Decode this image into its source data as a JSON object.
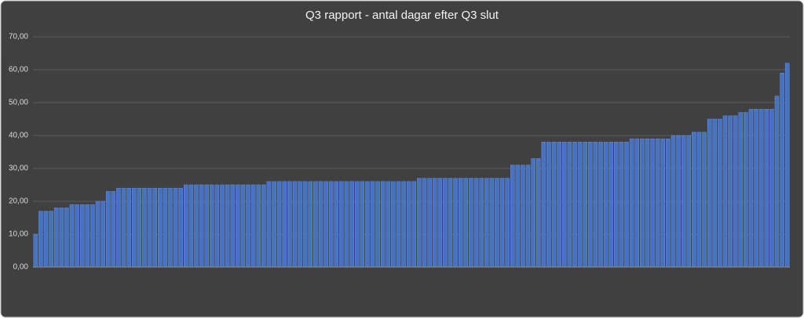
{
  "chart_data": {
    "type": "bar",
    "title": "Q3 rapport - antal dagar efter Q3 slut",
    "categories": [
      null,
      null,
      null,
      null,
      null,
      null,
      null,
      null,
      null,
      null,
      null,
      null,
      null,
      null,
      null,
      null,
      null,
      null,
      null,
      null,
      null,
      null,
      null,
      null,
      null,
      null,
      null,
      null,
      null,
      null,
      null,
      null,
      null,
      null,
      null,
      null,
      null,
      null,
      null,
      null,
      null,
      null,
      null,
      null,
      null,
      null,
      null,
      null,
      null,
      null,
      null,
      null,
      null,
      null,
      null,
      null,
      null,
      null,
      null,
      null,
      null,
      null,
      null,
      null,
      null,
      null,
      null,
      null,
      null,
      null,
      null,
      null,
      null,
      null,
      null,
      null,
      null,
      null,
      null,
      null,
      null,
      null,
      null,
      null,
      null,
      null,
      null,
      null,
      null,
      null,
      null,
      null,
      null,
      null,
      null,
      null,
      null,
      null,
      null,
      null,
      null,
      null,
      null,
      null,
      null,
      null,
      null,
      null,
      null,
      null,
      null,
      null,
      null,
      null,
      null,
      null,
      null,
      null,
      null,
      null,
      null,
      null,
      null,
      null,
      null,
      null,
      null,
      null,
      null,
      null,
      null,
      null,
      null,
      null,
      null,
      null,
      null,
      null,
      null,
      null,
      null,
      null,
      null,
      null,
      null,
      null
    ],
    "values": [
      10,
      17,
      17,
      17,
      18,
      18,
      18,
      19,
      19,
      19,
      19,
      19,
      20,
      20,
      23,
      23,
      24,
      24,
      24,
      24,
      24,
      24,
      24,
      24,
      24,
      24,
      24,
      24,
      24,
      25,
      25,
      25,
      25,
      25,
      25,
      25,
      25,
      25,
      25,
      25,
      25,
      25,
      25,
      25,
      25,
      26,
      26,
      26,
      26,
      26,
      26,
      26,
      26,
      26,
      26,
      26,
      26,
      26,
      26,
      26,
      26,
      26,
      26,
      26,
      26,
      26,
      26,
      26,
      26,
      26,
      26,
      26,
      26,
      26,
      27,
      27,
      27,
      27,
      27,
      27,
      27,
      27,
      27,
      27,
      27,
      27,
      27,
      27,
      27,
      27,
      27,
      27,
      31,
      31,
      31,
      31,
      33,
      33,
      38,
      38,
      38,
      38,
      38,
      38,
      38,
      38,
      38,
      38,
      38,
      38,
      38,
      38,
      38,
      38,
      38,
      39,
      39,
      39,
      39,
      39,
      39,
      39,
      39,
      40,
      40,
      40,
      40,
      41,
      41,
      41,
      45,
      45,
      45,
      46,
      46,
      46,
      47,
      47,
      48,
      48,
      48,
      48,
      48,
      52,
      59,
      62
    ],
    "color": "#4472c4",
    "ylim": [
      0,
      70
    ],
    "yticks": [
      {
        "value": 0,
        "label": "0,00"
      },
      {
        "value": 10,
        "label": "10,00"
      },
      {
        "value": 20,
        "label": "20,00"
      },
      {
        "value": 30,
        "label": "30,00"
      },
      {
        "value": 40,
        "label": "40,00"
      },
      {
        "value": 50,
        "label": "50,00"
      },
      {
        "value": 60,
        "label": "60,00"
      },
      {
        "value": 70,
        "label": "70,00"
      }
    ],
    "grid": true
  }
}
